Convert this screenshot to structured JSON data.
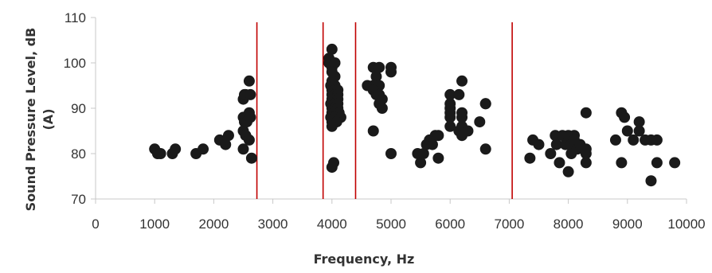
{
  "chart_data": {
    "type": "scatter",
    "title": "",
    "xlabel": "Frequency, Hz",
    "ylabel_lines": [
      "Sound Pressure Level, dB",
      "(A)"
    ],
    "xlim": [
      0,
      10000
    ],
    "ylim": [
      70,
      110
    ],
    "x_ticks": [
      0,
      1000,
      2000,
      3000,
      4000,
      5000,
      6000,
      7000,
      8000,
      9000,
      10000
    ],
    "y_ticks": [
      70,
      80,
      90,
      100,
      110
    ],
    "x_tick_labels": [
      "0",
      "1000",
      "2000",
      "3000",
      "4000",
      "5000",
      "6000",
      "7000",
      "8000",
      "9000",
      "10000"
    ],
    "y_tick_labels": [
      "70",
      "80",
      "90",
      "100",
      "110"
    ],
    "grid": false,
    "legend": "none",
    "marker_color": "#1a1a1a",
    "reference_line_color": "#c00000",
    "vertical_reference_lines_x": [
      2730,
      3850,
      4400,
      7050
    ],
    "series": [
      {
        "points": [
          [
            1000,
            81
          ],
          [
            1050,
            80
          ],
          [
            1100,
            80
          ],
          [
            1300,
            80
          ],
          [
            1350,
            81
          ],
          [
            1700,
            80
          ],
          [
            1820,
            81
          ],
          [
            2100,
            83
          ],
          [
            2200,
            82
          ],
          [
            2250,
            84
          ],
          [
            2500,
            92
          ],
          [
            2520,
            93
          ],
          [
            2540,
            93
          ],
          [
            2500,
            88
          ],
          [
            2520,
            87
          ],
          [
            2500,
            85
          ],
          [
            2540,
            84
          ],
          [
            2500,
            81
          ],
          [
            2560,
            87
          ],
          [
            2600,
            96
          ],
          [
            2620,
            93
          ],
          [
            2600,
            89
          ],
          [
            2620,
            88
          ],
          [
            2600,
            83
          ],
          [
            2640,
            79
          ],
          [
            3950,
            101
          ],
          [
            4000,
            103
          ],
          [
            3950,
            100
          ],
          [
            4000,
            99
          ],
          [
            4050,
            100
          ],
          [
            4000,
            98
          ],
          [
            4050,
            97
          ],
          [
            4000,
            96
          ],
          [
            3980,
            95
          ],
          [
            4050,
            95
          ],
          [
            4000,
            94
          ],
          [
            4050,
            94
          ],
          [
            4100,
            94
          ],
          [
            4000,
            93
          ],
          [
            4050,
            93
          ],
          [
            4100,
            93
          ],
          [
            4000,
            92
          ],
          [
            4050,
            92
          ],
          [
            4100,
            92
          ],
          [
            3980,
            91
          ],
          [
            4050,
            91
          ],
          [
            4100,
            91
          ],
          [
            4000,
            90
          ],
          [
            4050,
            90
          ],
          [
            4100,
            90
          ],
          [
            4000,
            89
          ],
          [
            4050,
            89
          ],
          [
            4120,
            89
          ],
          [
            3980,
            88
          ],
          [
            4050,
            88
          ],
          [
            4150,
            88
          ],
          [
            4000,
            87
          ],
          [
            4080,
            87
          ],
          [
            4000,
            86
          ],
          [
            4030,
            78
          ],
          [
            4000,
            77
          ],
          [
            4600,
            95
          ],
          [
            4700,
            99
          ],
          [
            4800,
            99
          ],
          [
            4750,
            97
          ],
          [
            4700,
            95
          ],
          [
            4800,
            95
          ],
          [
            4700,
            94
          ],
          [
            4750,
            93
          ],
          [
            4800,
            93
          ],
          [
            4850,
            92
          ],
          [
            4800,
            91
          ],
          [
            4850,
            90
          ],
          [
            4700,
            85
          ],
          [
            5000,
            99
          ],
          [
            5000,
            98
          ],
          [
            5000,
            80
          ],
          [
            5450,
            80
          ],
          [
            5500,
            78
          ],
          [
            5550,
            80
          ],
          [
            5600,
            82
          ],
          [
            5650,
            83
          ],
          [
            5700,
            82
          ],
          [
            5750,
            84
          ],
          [
            5800,
            84
          ],
          [
            5800,
            79
          ],
          [
            6000,
            93
          ],
          [
            6000,
            91
          ],
          [
            6000,
            90
          ],
          [
            6000,
            89
          ],
          [
            6000,
            88
          ],
          [
            6000,
            86
          ],
          [
            6150,
            93
          ],
          [
            6200,
            96
          ],
          [
            6200,
            89
          ],
          [
            6200,
            88
          ],
          [
            6200,
            86
          ],
          [
            6150,
            85
          ],
          [
            6200,
            84
          ],
          [
            6300,
            85
          ],
          [
            6500,
            87
          ],
          [
            6600,
            91
          ],
          [
            6600,
            81
          ],
          [
            6600,
            91
          ],
          [
            7350,
            79
          ],
          [
            7400,
            83
          ],
          [
            7500,
            82
          ],
          [
            7700,
            80
          ],
          [
            7780,
            84
          ],
          [
            7800,
            82
          ],
          [
            7850,
            78
          ],
          [
            7900,
            84
          ],
          [
            7950,
            82
          ],
          [
            8000,
            76
          ],
          [
            8000,
            84
          ],
          [
            8050,
            82
          ],
          [
            8100,
            84
          ],
          [
            8050,
            80
          ],
          [
            8100,
            83
          ],
          [
            8150,
            81
          ],
          [
            8200,
            82
          ],
          [
            8250,
            81
          ],
          [
            8300,
            78
          ],
          [
            8300,
            80
          ],
          [
            8300,
            81
          ],
          [
            8300,
            89
          ],
          [
            8800,
            83
          ],
          [
            8900,
            89
          ],
          [
            8900,
            78
          ],
          [
            8950,
            88
          ],
          [
            9000,
            85
          ],
          [
            9100,
            83
          ],
          [
            9200,
            87
          ],
          [
            9200,
            85
          ],
          [
            9300,
            83
          ],
          [
            9400,
            83
          ],
          [
            9400,
            74
          ],
          [
            9500,
            83
          ],
          [
            9500,
            78
          ],
          [
            9800,
            78
          ]
        ]
      }
    ]
  }
}
